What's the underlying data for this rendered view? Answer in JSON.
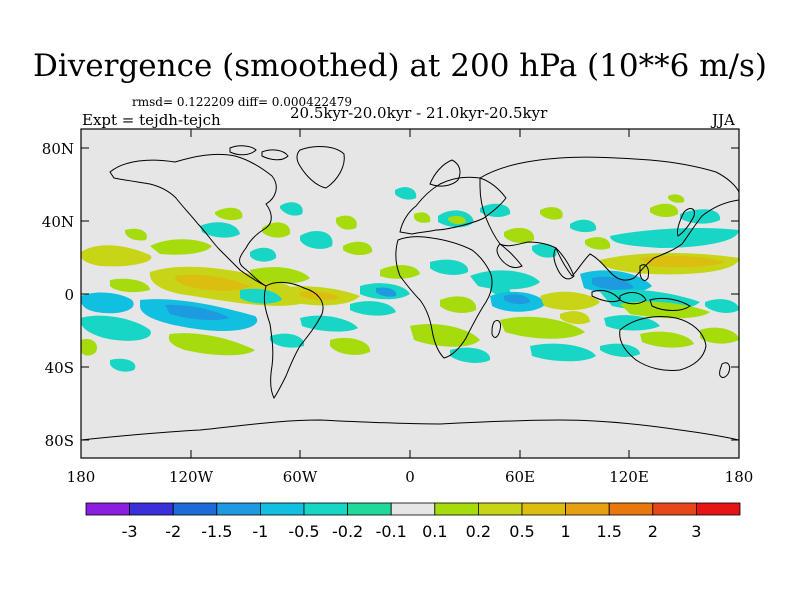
{
  "title": "Divergence (smoothed) at 200 hPa (10**6 m/s)",
  "stats": "rmsd= 0.122209 diff= 0.000422479",
  "experiment": "Expt = tejdh-tejch",
  "period": "20.5kyr-20.0kyr - 21.0kyr-20.5kyr",
  "season": "JJA",
  "lat_labels": [
    "80N",
    "40N",
    "0",
    "40S",
    "80S"
  ],
  "lon_labels": [
    "180",
    "120W",
    "60W",
    "0",
    "60E",
    "120E",
    "180"
  ],
  "colorbar": {
    "labels": [
      "-3",
      "-2",
      "-1.5",
      "-1",
      "-0.5",
      "-0.2",
      "-0.1",
      "0.1",
      "0.2",
      "0.5",
      "1",
      "1.5",
      "2",
      "3"
    ],
    "colors": [
      "#8a1fe0",
      "#3a2fd8",
      "#1e6ad8",
      "#1e9be0",
      "#11bfe0",
      "#18d6c6",
      "#20d89a",
      "#e6e6e6",
      "#a6dc0c",
      "#c8d416",
      "#dcbe10",
      "#e6a012",
      "#e8780e",
      "#e6461a",
      "#e61414"
    ]
  },
  "chart_data": {
    "type": "heatmap",
    "title": "Divergence (smoothed) at 200 hPa (10**6 m/s)",
    "variable": "divergence difference",
    "units": "10**6 m/s",
    "levels": [
      -3,
      -2,
      -1.5,
      -1,
      -0.5,
      -0.2,
      -0.1,
      0.1,
      0.2,
      0.5,
      1,
      1.5,
      2,
      3
    ],
    "lon_range": [
      -180,
      180
    ],
    "lat_range": [
      -90,
      90
    ],
    "lon_ticks": [
      "180",
      "120W",
      "60W",
      "0",
      "60E",
      "120E",
      "180"
    ],
    "lat_ticks": [
      "80N",
      "40N",
      "0",
      "40S",
      "80S"
    ],
    "features": [
      {
        "lon": -162,
        "lat": 22,
        "level": 0.2
      },
      {
        "lon": -160,
        "lat": -12,
        "level": -0.2
      },
      {
        "lon": -115,
        "lat": 10,
        "level": 0.5
      },
      {
        "lon": -110,
        "lat": -5,
        "level": -0.5
      },
      {
        "lon": -110,
        "lat": -30,
        "level": 0.2
      },
      {
        "lon": -95,
        "lat": 30,
        "level": 0.2
      },
      {
        "lon": -75,
        "lat": 30,
        "level": -0.2
      },
      {
        "lon": -50,
        "lat": 0,
        "level": 0.5
      },
      {
        "lon": -40,
        "lat": -15,
        "level": -0.2
      },
      {
        "lon": -15,
        "lat": 5,
        "level": -0.5
      },
      {
        "lon": 20,
        "lat": 45,
        "level": -0.2
      },
      {
        "lon": 30,
        "lat": -10,
        "level": 0.2
      },
      {
        "lon": 60,
        "lat": 0,
        "level": -0.5
      },
      {
        "lon": 75,
        "lat": -18,
        "level": 0.2
      },
      {
        "lon": 105,
        "lat": 0,
        "level": -0.5
      },
      {
        "lon": 140,
        "lat": 15,
        "level": 0.5
      },
      {
        "lon": 150,
        "lat": 30,
        "level": -0.2
      },
      {
        "lon": 160,
        "lat": -10,
        "level": 0.5
      },
      {
        "lon": 165,
        "lat": -30,
        "level": 0.2
      }
    ]
  }
}
